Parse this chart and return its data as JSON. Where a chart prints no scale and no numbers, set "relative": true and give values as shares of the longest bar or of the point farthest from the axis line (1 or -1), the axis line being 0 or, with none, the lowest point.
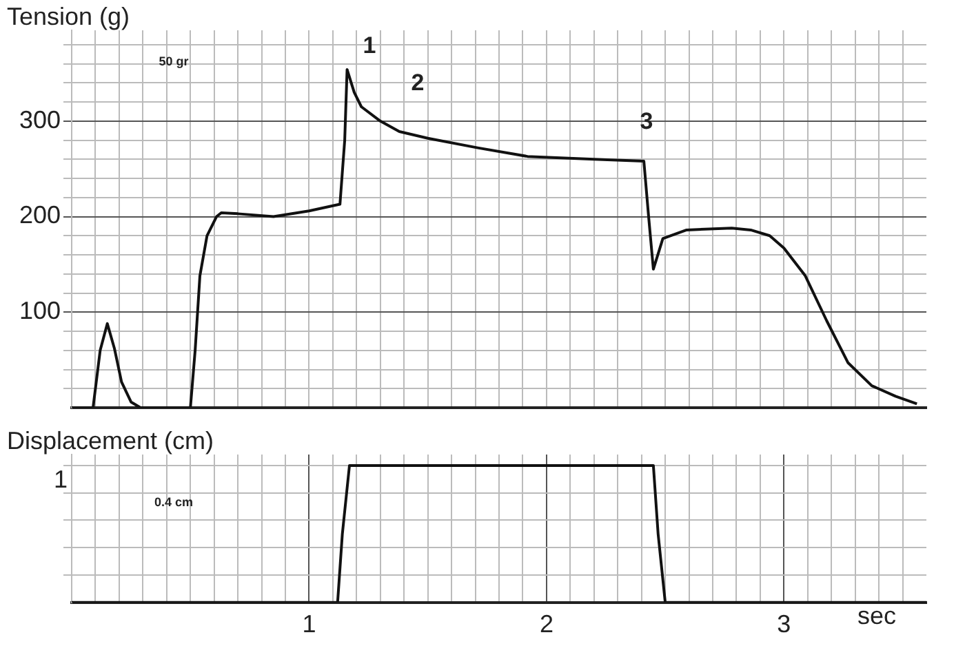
{
  "chart_data": [
    {
      "type": "line",
      "ylabel": "Tension (g)",
      "marker": "none",
      "grid": true,
      "legend": false,
      "tick_labels": "y",
      "xlim": [
        0,
        3.6
      ],
      "xticks": [
        {
          "value": 0.1,
          "label": null
        },
        {
          "value": 0.2,
          "label": null
        },
        {
          "value": 0.3,
          "label": null
        },
        {
          "value": 0.4,
          "label": null
        },
        {
          "value": 0.5,
          "label": null
        },
        {
          "value": 0.6,
          "label": null
        },
        {
          "value": 0.7,
          "label": null
        },
        {
          "value": 0.8,
          "label": null
        },
        {
          "value": 0.9,
          "label": null
        },
        {
          "value": 1,
          "label": null
        },
        {
          "value": 1.1,
          "label": null
        },
        {
          "value": 1.2,
          "label": null
        },
        {
          "value": 1.3,
          "label": null
        },
        {
          "value": 1.4,
          "label": null
        },
        {
          "value": 1.5,
          "label": null
        },
        {
          "value": 1.6,
          "label": null
        },
        {
          "value": 1.7,
          "label": null
        },
        {
          "value": 1.8,
          "label": null
        },
        {
          "value": 1.9,
          "label": null
        },
        {
          "value": 2,
          "label": null
        },
        {
          "value": 2.1,
          "label": null
        },
        {
          "value": 2.2,
          "label": null
        },
        {
          "value": 2.3,
          "label": null
        },
        {
          "value": 2.4,
          "label": null
        },
        {
          "value": 2.5,
          "label": null
        },
        {
          "value": 2.6,
          "label": null
        },
        {
          "value": 2.7,
          "label": null
        },
        {
          "value": 2.8,
          "label": null
        },
        {
          "value": 2.9,
          "label": null
        },
        {
          "value": 3,
          "label": null
        },
        {
          "value": 3.1,
          "label": null
        },
        {
          "value": 3.2,
          "label": null
        },
        {
          "value": 3.3,
          "label": null
        },
        {
          "value": 3.4,
          "label": null
        },
        {
          "value": 3.5,
          "label": null
        }
      ],
      "ylim": [
        0,
        395
      ],
      "yticks": [
        {
          "value": 20,
          "label": null
        },
        {
          "value": 40,
          "label": null
        },
        {
          "value": 60,
          "label": null
        },
        {
          "value": 80,
          "label": null
        },
        100,
        {
          "value": 120,
          "label": null
        },
        {
          "value": 140,
          "label": null
        },
        {
          "value": 160,
          "label": null
        },
        {
          "value": 180,
          "label": null
        },
        200,
        {
          "value": 220,
          "label": null
        },
        {
          "value": 240,
          "label": null
        },
        {
          "value": 260,
          "label": null
        },
        {
          "value": 280,
          "label": null
        },
        300,
        {
          "value": 320,
          "label": null
        },
        {
          "value": 340,
          "label": null
        },
        {
          "value": 360,
          "label": null
        },
        {
          "value": 380,
          "label": null
        }
      ],
      "x": [
        0,
        0.09,
        0.12,
        0.15,
        0.18,
        0.21,
        0.25,
        0.29,
        0.5,
        0.52,
        0.54,
        0.57,
        0.61,
        0.63,
        0.7,
        0.85,
        1.0,
        1.13,
        1.15,
        1.16,
        1.19,
        1.22,
        1.3,
        1.38,
        1.5,
        1.71,
        1.92,
        2.2,
        2.41,
        2.43,
        2.45,
        2.49,
        2.59,
        2.78,
        2.86,
        2.94,
        3.0,
        3.09,
        3.18,
        3.27,
        3.37,
        3.47,
        3.56
      ],
      "series": [
        {
          "color": "#111111",
          "values": [
            0,
            0,
            60,
            88,
            62,
            27,
            6,
            0,
            0,
            60,
            138,
            180,
            200,
            204,
            203,
            200,
            206,
            213,
            280,
            354,
            330,
            315,
            300,
            289,
            282,
            272,
            263,
            260,
            258,
            200,
            145,
            177,
            186,
            188,
            186,
            180,
            167,
            138,
            91,
            47,
            23,
            12,
            4
          ]
        }
      ],
      "annotations": [
        "1",
        "2",
        "3",
        "50 gr"
      ]
    },
    {
      "type": "line",
      "ylabel": "Displacement (cm)",
      "xlabel": "sec",
      "marker": "none",
      "grid": true,
      "legend": false,
      "xlim": [
        0,
        3.6
      ],
      "xticks": [
        {
          "value": 0.1,
          "label": null
        },
        {
          "value": 0.2,
          "label": null
        },
        {
          "value": 0.3,
          "label": null
        },
        {
          "value": 0.4,
          "label": null
        },
        {
          "value": 0.5,
          "label": null
        },
        {
          "value": 0.6,
          "label": null
        },
        {
          "value": 0.7,
          "label": null
        },
        {
          "value": 0.8,
          "label": null
        },
        {
          "value": 0.9,
          "label": null
        },
        1,
        {
          "value": 1.1,
          "label": null
        },
        {
          "value": 1.2,
          "label": null
        },
        {
          "value": 1.3,
          "label": null
        },
        {
          "value": 1.4,
          "label": null
        },
        {
          "value": 1.5,
          "label": null
        },
        {
          "value": 1.6,
          "label": null
        },
        {
          "value": 1.7,
          "label": null
        },
        {
          "value": 1.8,
          "label": null
        },
        {
          "value": 1.9,
          "label": null
        },
        2,
        {
          "value": 2.1,
          "label": null
        },
        {
          "value": 2.2,
          "label": null
        },
        {
          "value": 2.3,
          "label": null
        },
        {
          "value": 2.4,
          "label": null
        },
        {
          "value": 2.5,
          "label": null
        },
        {
          "value": 2.6,
          "label": null
        },
        {
          "value": 2.7,
          "label": null
        },
        {
          "value": 2.8,
          "label": null
        },
        {
          "value": 2.9,
          "label": null
        },
        3,
        {
          "value": 3.1,
          "label": null
        },
        {
          "value": 3.2,
          "label": null
        },
        {
          "value": 3.3,
          "label": null
        },
        {
          "value": 3.4,
          "label": null
        },
        {
          "value": 3.5,
          "label": null
        }
      ],
      "relative": true,
      "x": [
        0,
        1.12,
        1.14,
        1.17,
        2.45,
        2.47,
        2.5,
        3.6
      ],
      "series": [
        {
          "color": "#111111",
          "values": [
            0,
            0,
            0.5,
            1,
            1,
            0.5,
            0,
            0
          ]
        }
      ],
      "annotations": [
        "1",
        "0.4 cm"
      ]
    }
  ]
}
